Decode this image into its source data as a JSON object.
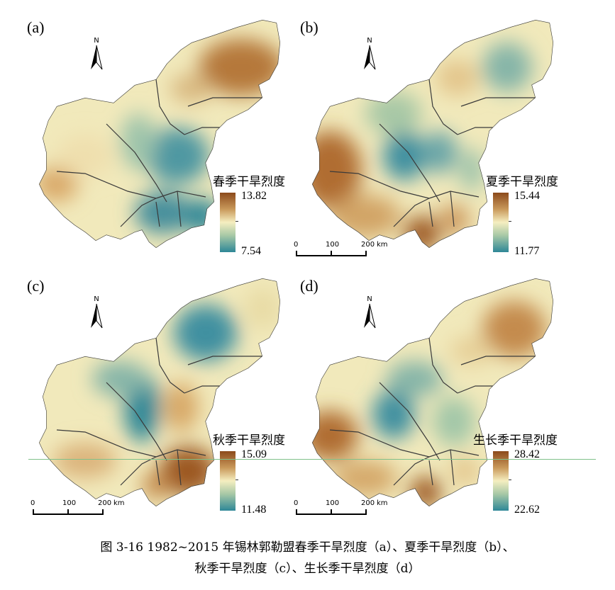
{
  "panels": [
    {
      "label": "(a)",
      "legend_title": "春季干旱烈度",
      "legend_max": "13.82",
      "legend_min": "7.54"
    },
    {
      "label": "(b)",
      "legend_title": "夏季干旱烈度",
      "legend_max": "15.44",
      "legend_min": "11.77"
    },
    {
      "label": "(c)",
      "legend_title": "秋季干旱烈度",
      "legend_max": "15.09",
      "legend_min": "11.48"
    },
    {
      "label": "(d)",
      "legend_title": "生长季干旱烈度",
      "legend_max": "28.42",
      "legend_min": "22.62"
    }
  ],
  "north_label": "N",
  "scale": {
    "t0": "0",
    "t1": "100",
    "t2": "200",
    "unit": "km"
  },
  "caption": {
    "line1": "图 3-16  1982~2015 年锡林郭勒盟春季干旱烈度（a）、夏季干旱烈度（b）、",
    "line2": "秋季干旱烈度（c）、生长季干旱烈度（d）"
  },
  "colors": {
    "high": "#8c4a1b",
    "mid": "#f5eec0",
    "low": "#2e8797"
  }
}
